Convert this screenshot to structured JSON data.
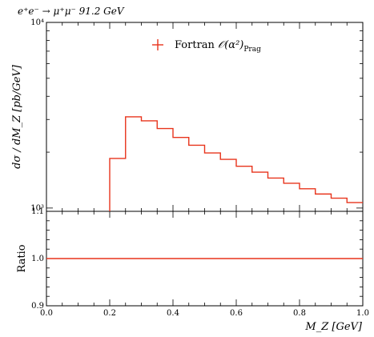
{
  "chart_data": {
    "type": "line",
    "title": "e⁺e⁻ → μ⁺μ⁻ 91.2 GeV",
    "main": {
      "ylabel": "dσ / dM_Z [pb/GeV]",
      "yscale": "log",
      "ylim": [
        960,
        10000
      ],
      "ytick_labels": [
        "10³",
        "10⁴"
      ],
      "ytick_values": [
        1000,
        10000
      ],
      "series": [
        {
          "name": "Fortran O(α²)_Prag",
          "color": "#e8341c",
          "bin_edges": [
            0.0,
            0.05,
            0.1,
            0.15,
            0.2,
            0.25,
            0.3,
            0.35,
            0.4,
            0.45,
            0.5,
            0.55,
            0.6,
            0.65,
            0.7,
            0.75,
            0.8,
            0.85,
            0.9,
            0.95,
            1.0
          ],
          "values": [
            0,
            0,
            0,
            0,
            1850,
            3100,
            2950,
            2680,
            2400,
            2180,
            1980,
            1830,
            1680,
            1560,
            1450,
            1360,
            1270,
            1190,
            1130,
            1070
          ]
        }
      ],
      "legend": {
        "position": "top-center",
        "label_main": "Fortran ",
        "label_math": "𝒪(α²)",
        "label_sub": "Prag"
      }
    },
    "ratio": {
      "ylabel": "Ratio",
      "ylim": [
        0.9,
        1.1
      ],
      "ytick_labels": [
        "0.9",
        "1.0",
        "1.1"
      ],
      "ytick_values": [
        0.9,
        1.0,
        1.1
      ],
      "value": 1.0
    },
    "xlabel": "M_Z [GeV]",
    "xlim": [
      0.0,
      1.0
    ],
    "xtick_labels": [
      "0.0",
      "0.2",
      "0.4",
      "0.6",
      "0.8",
      "1.0"
    ],
    "xtick_values": [
      0.0,
      0.2,
      0.4,
      0.6,
      0.8,
      1.0
    ]
  }
}
